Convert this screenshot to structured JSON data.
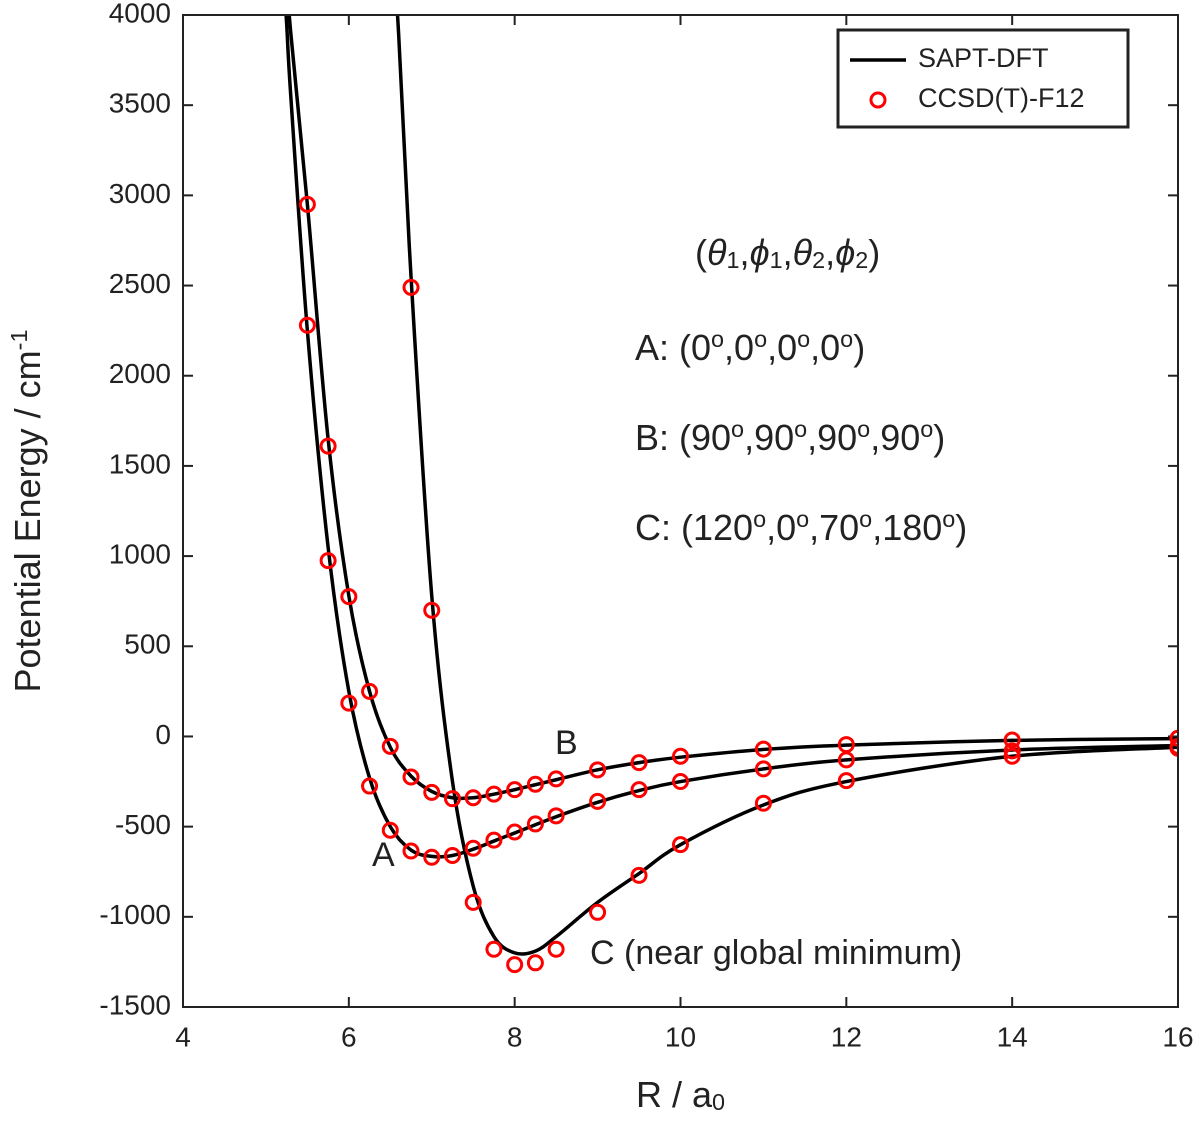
{
  "chart_data": {
    "type": "line",
    "xlim": [
      4,
      16
    ],
    "xticks": [
      4,
      6,
      8,
      10,
      12,
      14,
      16
    ],
    "ylim": [
      -1500,
      4000
    ],
    "yticks": [
      -1500,
      -1000,
      -500,
      0,
      500,
      1000,
      1500,
      2000,
      2500,
      3000,
      3500,
      4000
    ],
    "x_label": [
      {
        "text": "R  /  a"
      },
      {
        "text": "0",
        "shift": "sub"
      }
    ],
    "y_label": [
      {
        "text": "Potential Energy  /  cm"
      },
      {
        "text": "-1",
        "shift": "sup"
      }
    ],
    "legend": "upper right",
    "series": [
      {
        "name": "SAPT-DFT",
        "color": "#000000",
        "style": "line",
        "curves": [
          {
            "x": [
              5.2,
              5.25,
              5.3,
              5.5,
              5.75,
              6,
              6.25,
              6.5,
              6.75,
              7,
              7.25,
              7.5,
              7.75,
              8,
              8.5,
              9,
              9.5,
              10,
              11,
              12,
              14,
              16
            ],
            "values": [
              4300,
              3950,
              3550,
              2250,
              1050,
              250,
              -230,
              -500,
              -630,
              -665,
              -660,
              -625,
              -580,
              -535,
              -445,
              -365,
              -300,
              -250,
              -180,
              -130,
              -75,
              -50
            ]
          },
          {
            "x": [
              5.25,
              5.3,
              5.5,
              5.75,
              6,
              6.25,
              6.5,
              6.75,
              7,
              7.25,
              7.5,
              7.75,
              8,
              8.5,
              9,
              9.5,
              10,
              11,
              12,
              14,
              16
            ],
            "values": [
              4200,
              3900,
              2950,
              1650,
              780,
              250,
              -60,
              -220,
              -305,
              -340,
              -340,
              -320,
              -295,
              -240,
              -185,
              -145,
              -115,
              -72,
              -48,
              -22,
              -12
            ]
          },
          {
            "x": [
              6.55,
              6.6,
              6.75,
              7,
              7.25,
              7.5,
              7.75,
              8,
              8.25,
              8.5,
              9,
              9.5,
              10,
              11,
              12,
              14,
              16
            ],
            "values": [
              4200,
              3900,
              2550,
              780,
              -250,
              -830,
              -1110,
              -1200,
              -1190,
              -1110,
              -920,
              -760,
              -600,
              -380,
              -250,
              -110,
              -60
            ]
          }
        ]
      },
      {
        "name": "CCSD(T)-F12",
        "color": "#ff0000",
        "style": "marker",
        "curves": [
          {
            "x": [
              5.5,
              5.75,
              6,
              6.25,
              6.5,
              6.75,
              7,
              7.25,
              7.5,
              7.75,
              8,
              8.25,
              8.5,
              9,
              9.5,
              10,
              11,
              12,
              14,
              16
            ],
            "values": [
              2280,
              975,
              185,
              -275,
              -520,
              -635,
              -670,
              -660,
              -620,
              -575,
              -530,
              -485,
              -440,
              -360,
              -295,
              -250,
              -180,
              -130,
              -80,
              -55
            ]
          },
          {
            "x": [
              5.5,
              5.75,
              6,
              6.25,
              6.5,
              6.75,
              7,
              7.25,
              7.5,
              7.75,
              8,
              8.25,
              8.5,
              9,
              9.5,
              10,
              11,
              12,
              14,
              16
            ],
            "values": [
              2950,
              1610,
              775,
              250,
              -55,
              -225,
              -310,
              -345,
              -340,
              -320,
              -295,
              -265,
              -235,
              -185,
              -145,
              -110,
              -70,
              -45,
              -20,
              -10
            ]
          },
          {
            "x": [
              6.75,
              7,
              7.5,
              7.75,
              8,
              8.25,
              8.5,
              9,
              9.5,
              10,
              11,
              12,
              14,
              16
            ],
            "values": [
              2490,
              700,
              -920,
              -1180,
              -1265,
              -1255,
              -1180,
              -975,
              -770,
              -600,
              -370,
              -245,
              -110,
              -65
            ]
          }
        ]
      }
    ],
    "annotations": [
      [
        {
          "text": "A"
        }
      ],
      [
        {
          "text": "B"
        }
      ],
      [
        {
          "text": "C (near global minimum)"
        }
      ],
      [
        {
          "text": "("
        },
        {
          "text": "θ",
          "italic": true
        },
        {
          "text": "1",
          "shift": "sub"
        },
        {
          "text": ","
        },
        {
          "text": "ϕ",
          "italic": true
        },
        {
          "text": "1",
          "shift": "sub"
        },
        {
          "text": ","
        },
        {
          "text": "θ",
          "italic": true
        },
        {
          "text": "2",
          "shift": "sub"
        },
        {
          "text": ","
        },
        {
          "text": "ϕ",
          "italic": true
        },
        {
          "text": "2",
          "shift": "sub"
        },
        {
          "text": ")"
        }
      ],
      [
        {
          "text": "A:  (0"
        },
        {
          "text": "o",
          "shift": "sup"
        },
        {
          "text": ",0"
        },
        {
          "text": "o",
          "shift": "sup"
        },
        {
          "text": ",0"
        },
        {
          "text": "o",
          "shift": "sup"
        },
        {
          "text": ",0"
        },
        {
          "text": "o",
          "shift": "sup"
        },
        {
          "text": ")"
        }
      ],
      [
        {
          "text": "B:  (90"
        },
        {
          "text": "o",
          "shift": "sup"
        },
        {
          "text": ",90"
        },
        {
          "text": "o",
          "shift": "sup"
        },
        {
          "text": ",90"
        },
        {
          "text": "o",
          "shift": "sup"
        },
        {
          "text": ",90"
        },
        {
          "text": "o",
          "shift": "sup"
        },
        {
          "text": ")"
        }
      ],
      [
        {
          "text": "C:  (120"
        },
        {
          "text": "o",
          "shift": "sup"
        },
        {
          "text": ",0"
        },
        {
          "text": "o",
          "shift": "sup"
        },
        {
          "text": ",70"
        },
        {
          "text": "o",
          "shift": "sup"
        },
        {
          "text": ",180"
        },
        {
          "text": "o",
          "shift": "sup"
        },
        {
          "text": ")"
        }
      ]
    ]
  }
}
